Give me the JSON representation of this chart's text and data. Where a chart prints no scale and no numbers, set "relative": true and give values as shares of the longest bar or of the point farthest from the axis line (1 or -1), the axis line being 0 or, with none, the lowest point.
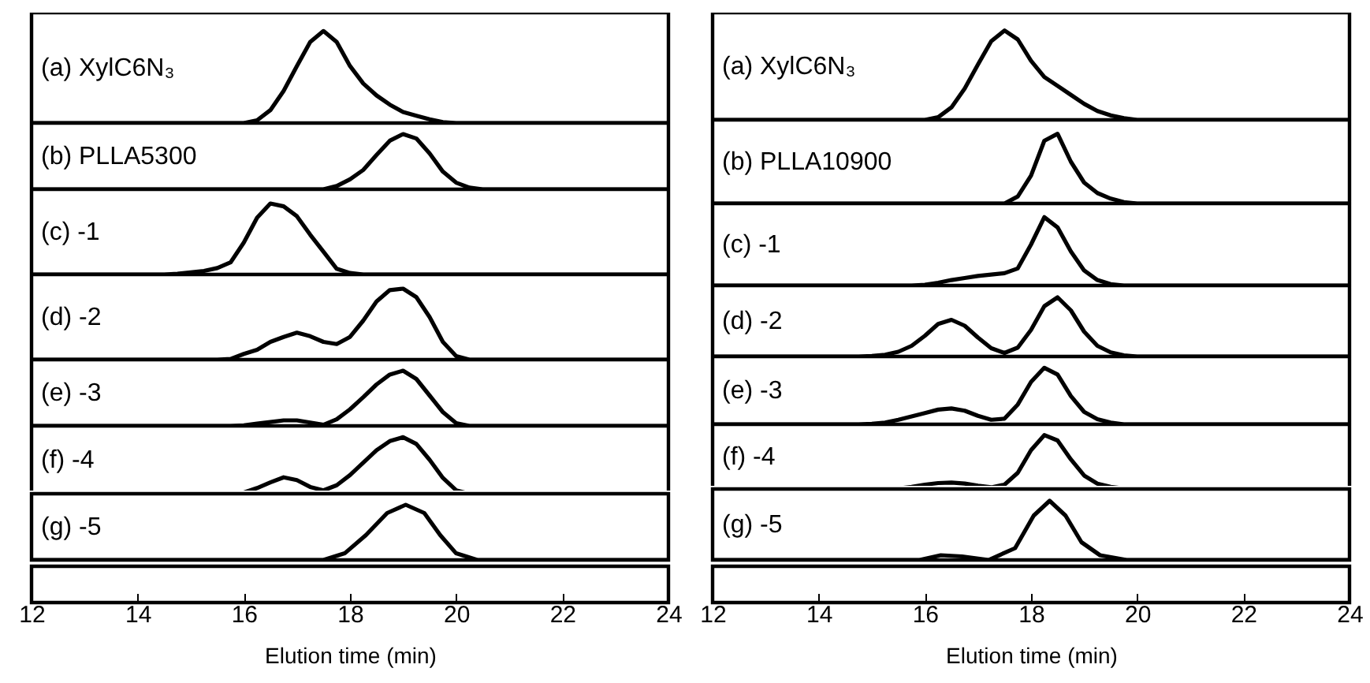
{
  "chart_data": [
    {
      "type": "line",
      "relative": true,
      "tick_labels": false,
      "categories": [
        null,
        null,
        null,
        null,
        null,
        null,
        null,
        null,
        null,
        null,
        null,
        null,
        null,
        null,
        null,
        null,
        null,
        null,
        null,
        null,
        null,
        null,
        null,
        null,
        null,
        null,
        null,
        null,
        null,
        null,
        null,
        null,
        null,
        null,
        null,
        null,
        null,
        null,
        null,
        null,
        null,
        null,
        null,
        null,
        null,
        null,
        null,
        null,
        null
      ],
      "series": [
        {
          "name": "(a) XylC6N₃",
          "color": "#000000",
          "values": [
            0,
            0,
            0,
            0,
            0,
            0,
            0,
            0,
            0,
            0,
            0,
            0,
            0,
            0,
            0,
            0,
            0,
            0.03,
            0.14,
            0.35,
            0.62,
            0.88,
            1,
            0.88,
            0.62,
            0.43,
            0.3,
            0.2,
            0.12,
            0.08,
            0.04,
            0.01,
            0,
            0,
            0,
            0,
            0,
            0,
            0,
            0,
            0,
            0,
            0,
            0,
            0,
            0,
            0,
            0,
            0
          ]
        }
      ]
    },
    {
      "type": "line",
      "relative": true,
      "tick_labels": false,
      "categories": [
        null,
        null,
        null,
        null,
        null,
        null,
        null,
        null,
        null,
        null,
        null,
        null,
        null,
        null,
        null,
        null,
        null,
        null,
        null,
        null,
        null,
        null,
        null,
        null,
        null,
        null,
        null,
        null,
        null,
        null,
        null,
        null,
        null,
        null,
        null,
        null,
        null,
        null,
        null,
        null,
        null,
        null,
        null,
        null,
        null,
        null,
        null,
        null,
        null
      ],
      "series": [
        {
          "name": "(b) PLLA5300",
          "color": "#000000",
          "values": [
            0,
            0,
            0,
            0,
            0,
            0,
            0,
            0,
            0,
            0,
            0,
            0,
            0,
            0,
            0,
            0,
            0,
            0,
            0,
            0,
            0,
            0,
            0,
            0.06,
            0.18,
            0.35,
            0.62,
            0.88,
            1,
            0.92,
            0.65,
            0.32,
            0.12,
            0.03,
            0,
            0,
            0,
            0,
            0,
            0,
            0,
            0,
            0,
            0,
            0,
            0,
            0,
            0,
            0
          ]
        }
      ]
    },
    {
      "type": "line",
      "relative": true,
      "tick_labels": false,
      "categories": [
        null,
        null,
        null,
        null,
        null,
        null,
        null,
        null,
        null,
        null,
        null,
        null,
        null,
        null,
        null,
        null,
        null,
        null,
        null,
        null,
        null,
        null,
        null,
        null,
        null,
        null,
        null,
        null,
        null,
        null,
        null,
        null,
        null,
        null,
        null,
        null,
        null,
        null,
        null,
        null,
        null,
        null,
        null,
        null,
        null,
        null,
        null,
        null,
        null
      ],
      "series": [
        {
          "name": "(c) -1",
          "color": "#000000",
          "values": [
            0,
            0,
            0,
            0,
            0,
            0,
            0,
            0,
            0,
            0,
            0,
            0.01,
            0.03,
            0.05,
            0.09,
            0.17,
            0.45,
            0.8,
            1,
            0.96,
            0.82,
            0.56,
            0.32,
            0.08,
            0.02,
            0,
            0,
            0,
            0,
            0,
            0,
            0,
            0,
            0,
            0,
            0,
            0,
            0,
            0,
            0,
            0,
            0,
            0,
            0,
            0,
            0,
            0,
            0,
            0
          ]
        }
      ]
    },
    {
      "type": "line",
      "relative": true,
      "tick_labels": false,
      "categories": [
        null,
        null,
        null,
        null,
        null,
        null,
        null,
        null,
        null,
        null,
        null,
        null,
        null,
        null,
        null,
        null,
        null,
        null,
        null,
        null,
        null,
        null,
        null,
        null,
        null,
        null,
        null,
        null,
        null,
        null,
        null,
        null,
        null,
        null,
        null,
        null,
        null,
        null,
        null,
        null,
        null,
        null,
        null,
        null,
        null,
        null,
        null,
        null,
        null
      ],
      "series": [
        {
          "name": "(d) -2",
          "color": "#000000",
          "values": [
            0,
            0,
            0,
            0,
            0,
            0,
            0,
            0,
            0,
            0,
            0,
            0,
            0,
            0,
            0,
            0.01,
            0.08,
            0.14,
            0.25,
            0.32,
            0.38,
            0.33,
            0.25,
            0.22,
            0.32,
            0.55,
            0.82,
            0.98,
            1,
            0.88,
            0.6,
            0.25,
            0.05,
            0,
            0,
            0,
            0,
            0,
            0,
            0,
            0,
            0,
            0,
            0,
            0,
            0,
            0,
            0,
            0
          ]
        }
      ]
    },
    {
      "type": "line",
      "relative": true,
      "tick_labels": false,
      "categories": [
        null,
        null,
        null,
        null,
        null,
        null,
        null,
        null,
        null,
        null,
        null,
        null,
        null,
        null,
        null,
        null,
        null,
        null,
        null,
        null,
        null,
        null,
        null,
        null,
        null,
        null,
        null,
        null,
        null,
        null,
        null,
        null,
        null,
        null,
        null,
        null,
        null,
        null,
        null,
        null,
        null,
        null,
        null,
        null,
        null,
        null,
        null,
        null,
        null
      ],
      "series": [
        {
          "name": "(e) -3",
          "color": "#000000",
          "values": [
            0,
            0,
            0,
            0,
            0,
            0,
            0,
            0,
            0,
            0,
            0,
            0,
            0,
            0,
            0,
            0,
            0.01,
            0.04,
            0.07,
            0.1,
            0.1,
            0.06,
            0.02,
            0.12,
            0.3,
            0.52,
            0.75,
            0.93,
            1,
            0.85,
            0.55,
            0.25,
            0.05,
            0,
            0,
            0,
            0,
            0,
            0,
            0,
            0,
            0,
            0,
            0,
            0,
            0,
            0,
            0,
            0
          ]
        }
      ]
    },
    {
      "type": "line",
      "relative": true,
      "tick_labels": false,
      "categories": [
        null,
        null,
        null,
        null,
        null,
        null,
        null,
        null,
        null,
        null,
        null,
        null,
        null,
        null,
        null,
        null,
        null,
        null,
        null,
        null,
        null,
        null,
        null,
        null,
        null,
        null,
        null,
        null,
        null,
        null,
        null,
        null,
        null,
        null,
        null,
        null,
        null,
        null,
        null,
        null,
        null,
        null,
        null,
        null,
        null,
        null,
        null,
        null,
        null
      ],
      "series": [
        {
          "name": "(f) -4",
          "color": "#000000",
          "values": [
            0,
            0,
            0,
            0,
            0,
            0,
            0,
            0,
            0,
            0,
            0,
            0,
            0,
            0,
            0,
            0,
            0.02,
            0.1,
            0.2,
            0.29,
            0.24,
            0.12,
            0.06,
            0.15,
            0.33,
            0.55,
            0.77,
            0.93,
            1,
            0.88,
            0.6,
            0.28,
            0.06,
            0,
            0,
            0,
            0,
            0,
            0,
            0,
            0,
            0,
            0,
            0,
            0,
            0,
            0,
            0,
            0
          ]
        }
      ]
    },
    {
      "type": "line",
      "relative": true,
      "xlim": [
        12,
        24
      ],
      "xticks": [
        12,
        14,
        16,
        18,
        20,
        22,
        24
      ],
      "xlabel": "Elution time (min)",
      "tick_labels": "x",
      "x": [
        12,
        16.3,
        17.5,
        17.9,
        18.3,
        18.7,
        19.05,
        19.4,
        19.7,
        20,
        20.4,
        24
      ],
      "series": [
        {
          "name": "(g) -5",
          "color": "#000000",
          "values": [
            0,
            0,
            0,
            0.12,
            0.45,
            0.85,
            1,
            0.85,
            0.45,
            0.12,
            0,
            0
          ]
        }
      ]
    },
    {
      "type": "line",
      "relative": true,
      "tick_labels": false,
      "categories": [
        null,
        null,
        null,
        null,
        null,
        null,
        null,
        null,
        null,
        null,
        null,
        null,
        null,
        null,
        null,
        null,
        null,
        null,
        null,
        null,
        null,
        null,
        null,
        null,
        null,
        null,
        null,
        null,
        null,
        null,
        null,
        null,
        null,
        null,
        null,
        null,
        null,
        null,
        null,
        null,
        null,
        null,
        null,
        null,
        null,
        null,
        null,
        null,
        null
      ],
      "series": [
        {
          "name": "(a) XylC6N₃",
          "color": "#000000",
          "values": [
            0,
            0,
            0,
            0,
            0,
            0,
            0,
            0,
            0,
            0,
            0,
            0,
            0,
            0,
            0,
            0,
            0,
            0.03,
            0.14,
            0.35,
            0.62,
            0.88,
            1,
            0.9,
            0.66,
            0.48,
            0.38,
            0.28,
            0.18,
            0.1,
            0.05,
            0.02,
            0,
            0,
            0,
            0,
            0,
            0,
            0,
            0,
            0,
            0,
            0,
            0,
            0,
            0,
            0,
            0,
            0
          ]
        }
      ]
    },
    {
      "type": "line",
      "relative": true,
      "tick_labels": false,
      "categories": [
        null,
        null,
        null,
        null,
        null,
        null,
        null,
        null,
        null,
        null,
        null,
        null,
        null,
        null,
        null,
        null,
        null,
        null,
        null,
        null,
        null,
        null,
        null,
        null,
        null,
        null,
        null,
        null,
        null,
        null,
        null,
        null,
        null,
        null,
        null,
        null,
        null,
        null,
        null,
        null,
        null,
        null,
        null,
        null,
        null,
        null,
        null,
        null,
        null
      ],
      "series": [
        {
          "name": "(b) PLLA10900",
          "color": "#000000",
          "values": [
            0,
            0,
            0,
            0,
            0,
            0,
            0,
            0,
            0,
            0,
            0,
            0,
            0,
            0,
            0,
            0,
            0,
            0,
            0,
            0,
            0,
            0,
            0,
            0.1,
            0.4,
            0.9,
            1,
            0.6,
            0.3,
            0.15,
            0.07,
            0.02,
            0,
            0,
            0,
            0,
            0,
            0,
            0,
            0,
            0,
            0,
            0,
            0,
            0,
            0,
            0,
            0,
            0
          ]
        }
      ]
    },
    {
      "type": "line",
      "relative": true,
      "tick_labels": false,
      "categories": [
        null,
        null,
        null,
        null,
        null,
        null,
        null,
        null,
        null,
        null,
        null,
        null,
        null,
        null,
        null,
        null,
        null,
        null,
        null,
        null,
        null,
        null,
        null,
        null,
        null,
        null,
        null,
        null,
        null,
        null,
        null,
        null,
        null,
        null,
        null,
        null,
        null,
        null,
        null,
        null,
        null,
        null,
        null,
        null,
        null,
        null,
        null,
        null,
        null
      ],
      "series": [
        {
          "name": "(c) -1",
          "color": "#000000",
          "values": [
            0,
            0,
            0,
            0,
            0,
            0,
            0,
            0,
            0,
            0,
            0,
            0,
            0,
            0,
            0,
            0,
            0.01,
            0.04,
            0.08,
            0.11,
            0.14,
            0.16,
            0.18,
            0.25,
            0.6,
            1,
            0.85,
            0.5,
            0.22,
            0.08,
            0.02,
            0,
            0,
            0,
            0,
            0,
            0,
            0,
            0,
            0,
            0,
            0,
            0,
            0,
            0,
            0,
            0,
            0,
            0
          ]
        }
      ]
    },
    {
      "type": "line",
      "relative": true,
      "tick_labels": false,
      "categories": [
        null,
        null,
        null,
        null,
        null,
        null,
        null,
        null,
        null,
        null,
        null,
        null,
        null,
        null,
        null,
        null,
        null,
        null,
        null,
        null,
        null,
        null,
        null,
        null,
        null,
        null,
        null,
        null,
        null,
        null,
        null,
        null,
        null,
        null,
        null,
        null,
        null,
        null,
        null,
        null,
        null,
        null,
        null,
        null,
        null,
        null,
        null,
        null,
        null
      ],
      "series": [
        {
          "name": "(d) -2",
          "color": "#000000",
          "values": [
            0,
            0,
            0,
            0,
            0,
            0,
            0,
            0,
            0,
            0,
            0,
            0,
            0.01,
            0.03,
            0.08,
            0.18,
            0.35,
            0.55,
            0.62,
            0.52,
            0.32,
            0.14,
            0.06,
            0.15,
            0.45,
            0.85,
            1,
            0.78,
            0.42,
            0.18,
            0.07,
            0.02,
            0,
            0,
            0,
            0,
            0,
            0,
            0,
            0,
            0,
            0,
            0,
            0,
            0,
            0,
            0,
            0,
            0
          ]
        }
      ]
    },
    {
      "type": "line",
      "relative": true,
      "tick_labels": false,
      "categories": [
        null,
        null,
        null,
        null,
        null,
        null,
        null,
        null,
        null,
        null,
        null,
        null,
        null,
        null,
        null,
        null,
        null,
        null,
        null,
        null,
        null,
        null,
        null,
        null,
        null,
        null,
        null,
        null,
        null,
        null,
        null,
        null,
        null,
        null,
        null,
        null,
        null,
        null,
        null,
        null,
        null,
        null,
        null,
        null,
        null,
        null,
        null,
        null,
        null
      ],
      "series": [
        {
          "name": "(e) -3",
          "color": "#000000",
          "values": [
            0,
            0,
            0,
            0,
            0,
            0,
            0,
            0,
            0,
            0,
            0,
            0,
            0.01,
            0.03,
            0.08,
            0.14,
            0.2,
            0.26,
            0.28,
            0.24,
            0.15,
            0.08,
            0.1,
            0.35,
            0.75,
            1,
            0.88,
            0.5,
            0.22,
            0.09,
            0.03,
            0,
            0,
            0,
            0,
            0,
            0,
            0,
            0,
            0,
            0,
            0,
            0,
            0,
            0,
            0,
            0,
            0,
            0
          ]
        }
      ]
    },
    {
      "type": "line",
      "relative": true,
      "tick_labels": false,
      "categories": [
        null,
        null,
        null,
        null,
        null,
        null,
        null,
        null,
        null,
        null,
        null,
        null,
        null,
        null,
        null,
        null,
        null,
        null,
        null,
        null,
        null,
        null,
        null,
        null,
        null,
        null,
        null,
        null,
        null,
        null,
        null,
        null,
        null,
        null,
        null,
        null,
        null,
        null,
        null,
        null,
        null,
        null,
        null,
        null,
        null,
        null,
        null,
        null,
        null
      ],
      "series": [
        {
          "name": "(f) -4",
          "color": "#000000",
          "values": [
            0,
            0,
            0,
            0,
            0,
            0,
            0,
            0,
            0,
            0,
            0,
            0,
            0,
            0,
            0.01,
            0.04,
            0.08,
            0.11,
            0.12,
            0.1,
            0.06,
            0.03,
            0.08,
            0.3,
            0.72,
            1,
            0.9,
            0.55,
            0.25,
            0.1,
            0.04,
            0.01,
            0,
            0,
            0,
            0,
            0,
            0,
            0,
            0,
            0,
            0,
            0,
            0,
            0,
            0,
            0,
            0,
            0
          ]
        }
      ]
    },
    {
      "type": "line",
      "relative": true,
      "xlim": [
        12,
        24
      ],
      "xticks": [
        12,
        14,
        16,
        18,
        20,
        22,
        24
      ],
      "xlabel": "Elution time (min)",
      "tick_labels": "x",
      "x": [
        12,
        15.9,
        16.3,
        16.7,
        17.2,
        17.7,
        18.05,
        18.35,
        18.65,
        18.95,
        19.3,
        19.8,
        24
      ],
      "series": [
        {
          "name": "(g) -5",
          "color": "#000000",
          "values": [
            0,
            0,
            0.08,
            0.06,
            0,
            0.2,
            0.75,
            1,
            0.75,
            0.3,
            0.08,
            0,
            0
          ]
        }
      ]
    }
  ]
}
